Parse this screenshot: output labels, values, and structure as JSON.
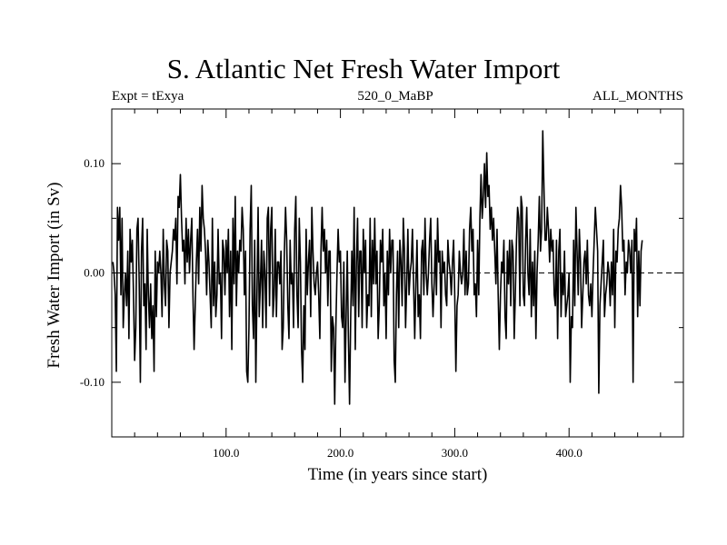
{
  "chart_data": {
    "type": "line",
    "title": "S. Atlantic Net Fresh Water Import",
    "header": {
      "left": "Expt = tExya",
      "center": "520_0_MaBP",
      "right": "ALL_MONTHS"
    },
    "xlabel": "Time (in years since start)",
    "ylabel": "Fresh Water Import (in Sv)",
    "xlim": [
      0,
      500
    ],
    "ylim": [
      -0.15,
      0.15
    ],
    "x_ticks": [
      100,
      200,
      300,
      400
    ],
    "x_tick_labels": [
      "100.0",
      "200.0",
      "300.0",
      "400.0"
    ],
    "y_ticks": [
      -0.1,
      0.0,
      0.1
    ],
    "y_tick_labels": [
      "-0.10",
      "0.00",
      "0.10"
    ],
    "zero_line": true,
    "grid": false,
    "series": [
      {
        "color": "#000000",
        "x_start": 1,
        "x_step": 1,
        "values": [
          0.01,
          0.0,
          -0.02,
          -0.09,
          0.06,
          0.03,
          0.06,
          -0.02,
          0.05,
          -0.05,
          -0.02,
          0.0,
          -0.03,
          0.02,
          -0.06,
          0.04,
          0.01,
          0.03,
          -0.02,
          -0.08,
          -0.05,
          0.04,
          0.05,
          -0.01,
          -0.1,
          0.02,
          0.05,
          -0.03,
          -0.01,
          -0.07,
          0.04,
          -0.02,
          -0.05,
          -0.01,
          -0.06,
          -0.03,
          -0.09,
          0.02,
          -0.04,
          0.01,
          0.0,
          0.02,
          0.0,
          -0.04,
          0.04,
          -0.01,
          -0.03,
          0.03,
          0.02,
          -0.05,
          0.0,
          0.01,
          0.02,
          0.04,
          0.03,
          0.05,
          -0.01,
          0.07,
          0.06,
          0.09,
          0.05,
          0.02,
          0.03,
          -0.01,
          0.05,
          0.01,
          0.04,
          0.0,
          0.03,
          0.05,
          -0.02,
          -0.07,
          -0.03,
          0.01,
          0.04,
          -0.01,
          0.06,
          0.02,
          0.08,
          0.05,
          0.04,
          0.02,
          -0.02,
          0.03,
          0.01,
          -0.02,
          -0.05,
          0.05,
          -0.03,
          0.01,
          -0.04,
          -0.02,
          0.04,
          -0.01,
          0.0,
          -0.06,
          0.03,
          0.02,
          -0.02,
          0.03,
          0.0,
          0.04,
          -0.04,
          0.02,
          -0.07,
          0.05,
          -0.01,
          0.07,
          -0.03,
          0.02,
          0.0,
          0.03,
          0.02,
          0.06,
          0.04,
          -0.02,
          0.02,
          -0.09,
          -0.1,
          -0.05,
          0.04,
          0.08,
          -0.03,
          -0.06,
          0.03,
          -0.1,
          -0.02,
          0.06,
          -0.04,
          -0.01,
          0.03,
          -0.05,
          0.02,
          0.0,
          -0.05,
          0.05,
          0.06,
          -0.03,
          0.04,
          0.06,
          -0.04,
          -0.02,
          0.04,
          -0.04,
          0.01,
          0.01,
          -0.01,
          0.02,
          -0.07,
          -0.05,
          0.02,
          0.06,
          0.03,
          -0.03,
          -0.06,
          0.03,
          -0.01,
          0.0,
          -0.05,
          0.04,
          0.07,
          -0.02,
          -0.05,
          0.05,
          0.01,
          -0.07,
          -0.1,
          -0.03,
          -0.07,
          0.04,
          -0.02,
          0.01,
          0.03,
          -0.04,
          0.06,
          0.02,
          -0.01,
          -0.02,
          0.0,
          0.01,
          -0.02,
          -0.06,
          0.02,
          0.06,
          0.02,
          0.04,
          0.0,
          0.03,
          -0.03,
          0.02,
          0.02,
          -0.09,
          -0.04,
          -0.05,
          -0.12,
          -0.05,
          0.0,
          0.04,
          0.01,
          0.02,
          -0.04,
          -0.05,
          0.01,
          -0.1,
          -0.04,
          0.02,
          -0.06,
          -0.12,
          -0.04,
          0.02,
          -0.03,
          0.06,
          -0.07,
          0.01,
          0.05,
          -0.04,
          0.02,
          0.02,
          -0.05,
          0.04,
          0.0,
          0.03,
          -0.05,
          -0.02,
          -0.03,
          0.05,
          -0.04,
          0.03,
          -0.01,
          0.05,
          -0.01,
          0.02,
          -0.06,
          -0.03,
          0.03,
          0.01,
          0.04,
          -0.03,
          0.0,
          -0.06,
          0.02,
          -0.02,
          0.04,
          0.0,
          0.03,
          0.03,
          -0.08,
          -0.1,
          -0.02,
          0.02,
          -0.05,
          0.03,
          0.01,
          -0.03,
          0.05,
          0.02,
          -0.05,
          -0.01,
          0.04,
          -0.02,
          0.0,
          0.01,
          0.04,
          -0.01,
          -0.06,
          -0.01,
          0.03,
          -0.04,
          -0.02,
          -0.06,
          0.02,
          0.03,
          -0.02,
          0.05,
          0.0,
          -0.02,
          0.0,
          0.03,
          0.05,
          -0.01,
          -0.04,
          -0.01,
          0.03,
          -0.02,
          0.05,
          0.01,
          0.02,
          -0.05,
          0.02,
          0.0,
          0.01,
          -0.02,
          -0.03,
          0.03,
          0.01,
          0.0,
          -0.02,
          0.01,
          0.03,
          -0.02,
          -0.09,
          -0.03,
          -0.02,
          0.02,
          0.0,
          -0.01,
          0.0,
          0.04,
          -0.02,
          0.02,
          -0.02,
          -0.01,
          0.04,
          0.06,
          0.02,
          0.04,
          -0.02,
          -0.01,
          -0.04,
          0.03,
          -0.02,
          0.05,
          0.09,
          0.05,
          0.07,
          0.1,
          0.06,
          0.11,
          0.07,
          0.08,
          0.04,
          0.06,
          0.03,
          0.05,
          0.02,
          -0.01,
          0.04,
          -0.02,
          -0.07,
          -0.02,
          0.01,
          0.0,
          0.03,
          -0.04,
          -0.06,
          0.02,
          -0.01,
          0.03,
          -0.03,
          0.03,
          0.02,
          -0.06,
          -0.02,
          0.03,
          0.06,
          0.05,
          -0.03,
          0.07,
          0.06,
          -0.02,
          -0.03,
          0.03,
          0.06,
          0.0,
          -0.02,
          0.04,
          -0.04,
          0.01,
          -0.03,
          0.02,
          -0.06,
          0.0,
          0.03,
          0.07,
          0.02,
          0.04,
          0.13,
          0.08,
          0.03,
          0.03,
          0.06,
          0.04,
          0.01,
          0.04,
          0.02,
          0.03,
          -0.02,
          -0.03,
          0.03,
          -0.06,
          0.02,
          0.04,
          -0.04,
          0.0,
          -0.02,
          0.02,
          -0.04,
          -0.03,
          -0.02,
          0.0,
          -0.1,
          -0.04,
          -0.05,
          0.03,
          -0.03,
          0.06,
          0.02,
          -0.02,
          0.04,
          0.01,
          -0.05,
          -0.02,
          0.01,
          0.02,
          -0.01,
          0.03,
          -0.02,
          -0.03,
          -0.01,
          -0.04,
          0.0,
          0.03,
          0.06,
          0.04,
          0.02,
          -0.11,
          -0.03,
          -0.01,
          0.01,
          0.03,
          -0.04,
          -0.02,
          -0.01,
          0.01,
          0.0,
          -0.03,
          0.01,
          -0.02,
          0.04,
          -0.05,
          0.02,
          0.01,
          0.04,
          0.05,
          0.08,
          0.06,
          0.02,
          0.03,
          -0.02,
          0.01,
          0.0,
          0.03,
          0.02,
          0.0,
          0.03,
          -0.1,
          0.04,
          0.02,
          0.05,
          -0.04,
          0.02,
          -0.03,
          0.02,
          0.03
        ]
      }
    ]
  }
}
